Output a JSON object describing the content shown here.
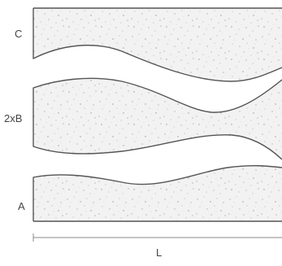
{
  "labels": {
    "region_c": "C",
    "region_b": "2xB",
    "region_a": "A",
    "length": "L"
  },
  "colors": {
    "fill": "#f2f2f2",
    "outline": "#555555",
    "speckle": "#9a9a9a",
    "text": "#444444",
    "dimension": "#888888"
  }
}
